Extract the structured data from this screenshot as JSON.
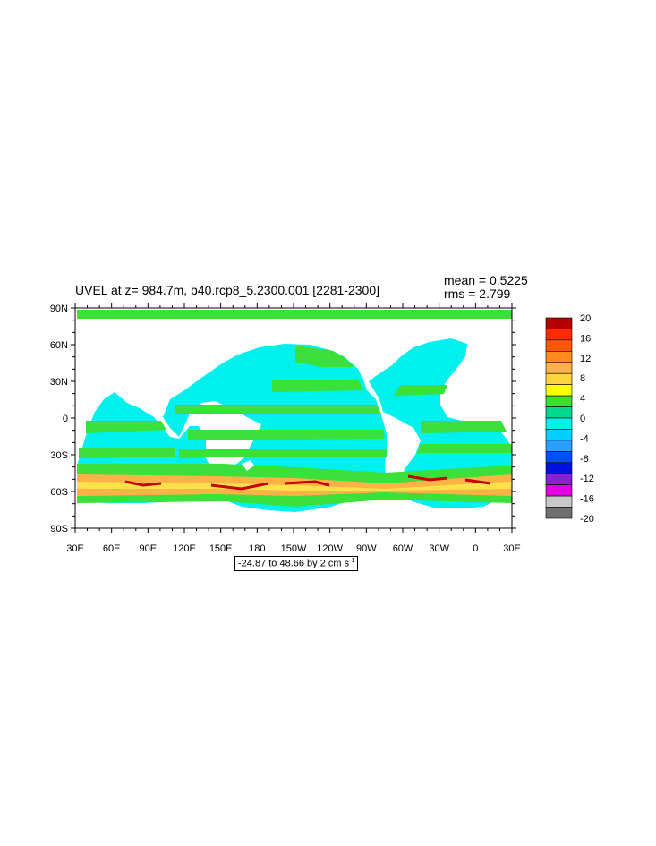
{
  "map": {
    "title": "UVEL at z= 984.7m, b40.rcp8_5.2300.001 [2281-2300]",
    "mean_text": "mean = 0.5225",
    "rms_text": "rms = 2.799",
    "range_text": "-24.87 to 48.66 by 2 cm s",
    "range_exponent": "-1",
    "lat_ticks": [
      "90N",
      "60N",
      "30N",
      "0",
      "30S",
      "60S",
      "90S"
    ],
    "lon_ticks": [
      "30E",
      "60E",
      "90E",
      "120E",
      "150E",
      "180",
      "150W",
      "120W",
      "90W",
      "60W",
      "30W",
      "0",
      "30E"
    ],
    "legend_labels": [
      "20",
      "16",
      "12",
      "8",
      "4",
      "0",
      "-4",
      "-8",
      "-12",
      "-16",
      "-20"
    ],
    "legend_colors": [
      "#b40000",
      "#ff2a00",
      "#ff5a00",
      "#ff8c1a",
      "#ffb347",
      "#ffd23f",
      "#ffff00",
      "#38e032",
      "#00d890",
      "#00f0f0",
      "#00d0ff",
      "#29a0ff",
      "#0050ff",
      "#0010e0",
      "#8a20d0",
      "#e000e0",
      "#c8c8c8",
      "#707070"
    ],
    "colors": {
      "ocean": "#00f0dc",
      "green": "#3be03a",
      "cyan": "#00f0ee",
      "acc_orange": "#ffb347",
      "acc_yellow": "#ffe24a",
      "acc_red": "#c80000",
      "land": "#ffffff"
    }
  }
}
